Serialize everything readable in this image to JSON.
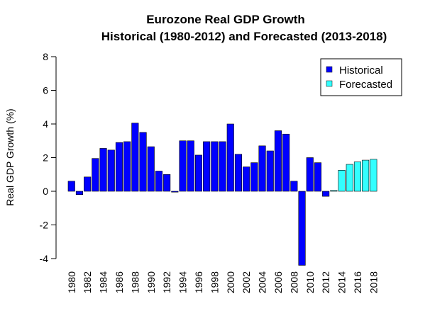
{
  "chart_data": {
    "type": "bar",
    "title": "Eurozone Real GDP Growth",
    "subtitle": "Historical (1980-2012) and Forecasted (2013-2018)",
    "xlabel": "",
    "ylabel": "Real GDP Growth (%)",
    "ylim": [
      -4,
      8
    ],
    "y_ticks": [
      "-4",
      "-2",
      "0",
      "2",
      "4",
      "6",
      "8"
    ],
    "x_tick_labels": [
      "1980",
      "1982",
      "1984",
      "1986",
      "1988",
      "1990",
      "1992",
      "1994",
      "1996",
      "1998",
      "2000",
      "2002",
      "2004",
      "2006",
      "2008",
      "2010",
      "2012",
      "2014",
      "2016",
      "2018"
    ],
    "grid": false,
    "legend_position": "top-right",
    "categories": [
      "1980",
      "1981",
      "1982",
      "1983",
      "1984",
      "1985",
      "1986",
      "1987",
      "1988",
      "1989",
      "1990",
      "1991",
      "1992",
      "1993",
      "1994",
      "1995",
      "1996",
      "1997",
      "1998",
      "1999",
      "2000",
      "2001",
      "2002",
      "2003",
      "2004",
      "2005",
      "2006",
      "2007",
      "2008",
      "2009",
      "2010",
      "2011",
      "2012",
      "2013",
      "2014",
      "2015",
      "2016",
      "2017",
      "2018"
    ],
    "series": [
      {
        "name": "Historical",
        "color": "#0000ff",
        "values": [
          0.6,
          -0.2,
          0.85,
          1.95,
          2.55,
          2.45,
          2.9,
          2.95,
          4.05,
          3.5,
          2.65,
          1.2,
          1.0,
          -0.05,
          3.0,
          3.0,
          2.15,
          2.95,
          2.95,
          2.95,
          4.0,
          2.2,
          1.45,
          1.7,
          2.7,
          2.4,
          3.6,
          3.4,
          0.6,
          -4.4,
          2.0,
          1.7,
          -0.3,
          null,
          null,
          null,
          null,
          null,
          null
        ]
      },
      {
        "name": "Forecasted",
        "color": "#33ffff",
        "values": [
          null,
          null,
          null,
          null,
          null,
          null,
          null,
          null,
          null,
          null,
          null,
          null,
          null,
          null,
          null,
          null,
          null,
          null,
          null,
          null,
          null,
          null,
          null,
          null,
          null,
          null,
          null,
          null,
          null,
          null,
          null,
          null,
          null,
          0.05,
          1.25,
          1.6,
          1.75,
          1.85,
          1.9
        ]
      }
    ]
  }
}
